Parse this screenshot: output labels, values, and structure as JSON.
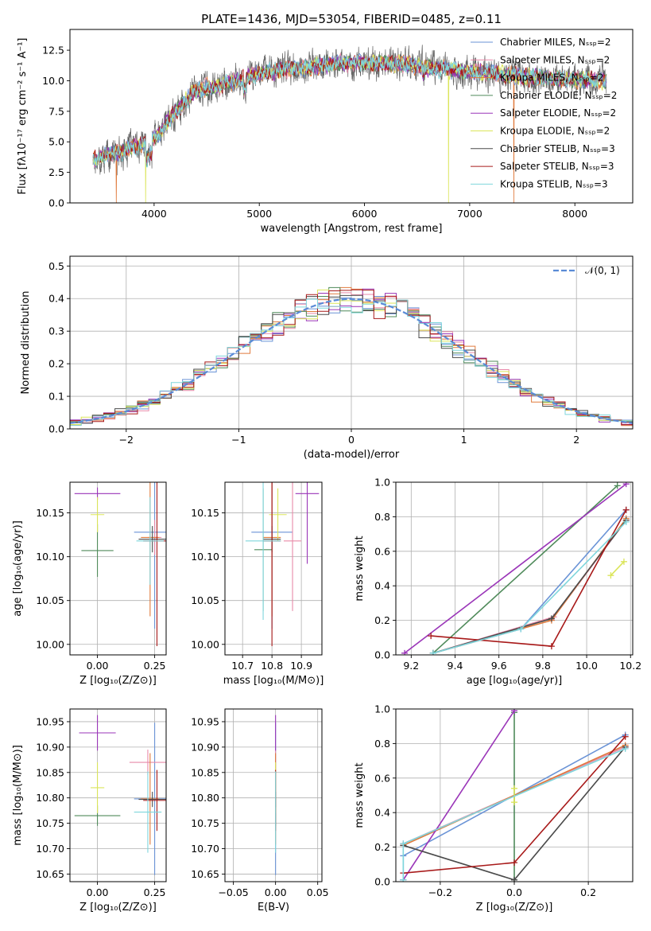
{
  "colors": {
    "Chabrier MILES": "#6a93d6",
    "Salpeter MILES": "#e88aa9",
    "Kroupa MILES": "#e07a3c",
    "Chabrier ELODIE": "#4f8a5a",
    "Salpeter ELODIE": "#9a35b8",
    "Kroupa ELODIE": "#dbe55a",
    "Chabrier STELIB": "#4a4a4a",
    "Salpeter STELIB": "#a81a1a",
    "Kroupa STELIB": "#7fd6dc",
    "normal": "#5a8bd6"
  },
  "chart_data": [
    {
      "id": "spectrum",
      "type": "line",
      "title": "PLATE=1436, MJD=53054, FIBERID=0485, z=0.11",
      "xlabel": "wavelength [Angstrom, rest frame]",
      "ylabel": "Flux [fλ10⁻¹⁷ erg cm⁻² s⁻¹ A⁻¹]",
      "xlim": [
        3200,
        8550
      ],
      "ylim": [
        0,
        14.2
      ],
      "xticks": [
        4000,
        5000,
        6000,
        7000,
        8000
      ],
      "yticks": [
        0.0,
        2.5,
        5.0,
        7.5,
        10.0,
        12.5
      ],
      "grid": false,
      "legend_position": "top-right",
      "legend": [
        "Chabrier MILES, Nₛₛₚ=2",
        "Salpeter MILES, Nₛₛₚ=2",
        "Kroupa MILES, Nₛₛₚ=2",
        "Chabrier ELODIE, Nₛₛₚ=2",
        "Salpeter ELODIE, Nₛₛₚ=2",
        "Kroupa ELODIE, Nₛₛₚ=2",
        "Chabrier STELIB, Nₛₛₚ=3",
        "Salpeter STELIB, Nₛₛₚ=3",
        "Kroupa STELIB, Nₛₛₚ=3"
      ],
      "legend_series": [
        "Chabrier MILES",
        "Salpeter MILES",
        "Kroupa MILES",
        "Chabrier ELODIE",
        "Salpeter ELODIE",
        "Kroupa ELODIE",
        "Chabrier STELIB",
        "Salpeter STELIB",
        "Kroupa STELIB"
      ],
      "wavelength_range": [
        3420,
        8300
      ],
      "continuum_x": [
        3420,
        3600,
        3700,
        3800,
        3900,
        4000,
        4100,
        4200,
        4300,
        4400,
        4600,
        4800,
        5000,
        5200,
        5500,
        5800,
        6000,
        6300,
        6600,
        6900,
        7200,
        7500,
        7800,
        8000,
        8300
      ],
      "continuum_y": [
        3.6,
        4.0,
        4.2,
        4.6,
        4.8,
        5.3,
        6.3,
        7.4,
        8.3,
        9.2,
        9.6,
        10.0,
        10.6,
        10.9,
        11.2,
        11.4,
        11.5,
        11.4,
        11.1,
        10.8,
        10.6,
        10.4,
        10.2,
        10.1,
        10.0
      ],
      "drops": [
        {
          "x": 3640,
          "series": "Kroupa MILES"
        },
        {
          "x": 3920,
          "series": "Kroupa ELODIE"
        },
        {
          "x": 6800,
          "series": "Kroupa ELODIE"
        },
        {
          "x": 7420,
          "series": "Kroupa MILES"
        }
      ]
    },
    {
      "id": "residuals",
      "type": "histogram",
      "xlabel": "(data-model)/error",
      "ylabel": "Normed distribution",
      "xlim": [
        -2.5,
        2.5
      ],
      "ylim": [
        0,
        0.53
      ],
      "xticks": [
        -2,
        -1,
        0,
        1,
        2
      ],
      "yticks": [
        0.0,
        0.1,
        0.2,
        0.3,
        0.4,
        0.5
      ],
      "grid": true,
      "bin_width": 0.1,
      "legend_position": "top-right",
      "legend": [
        "𝒩(0, 1)"
      ],
      "normal_curve": {
        "mean": 0,
        "sigma": 1
      }
    },
    {
      "id": "age_vs_Z",
      "type": "errorbar",
      "xlabel": "Z [log₁₀(Z/Z⊙)]",
      "ylabel": "age  [log₁₀(age/yr)]",
      "xlim": [
        -0.12,
        0.3
      ],
      "ylim": [
        9.988,
        10.185
      ],
      "xticks": [
        0.0,
        0.25
      ],
      "yticks": [
        10.0,
        10.05,
        10.1,
        10.15
      ],
      "grid": true,
      "points": [
        {
          "series": "Chabrier MILES",
          "x": 0.25,
          "y": 10.128,
          "xerr": 0.09,
          "yerr": 0.11
        },
        {
          "series": "Salpeter MILES",
          "x": 0.25,
          "y": 10.122,
          "xerr": 0.03,
          "yerr": 0.02
        },
        {
          "series": "Kroupa MILES",
          "x": 0.23,
          "y": 10.122,
          "xerr": 0.04,
          "yerr": 0.09
        },
        {
          "series": "Chabrier ELODIE",
          "x": 0.0,
          "y": 10.107,
          "xerr": 0.07,
          "yerr": 0.03
        },
        {
          "series": "Salpeter ELODIE",
          "x": 0.0,
          "y": 10.172,
          "xerr": 0.1,
          "yerr": 0.007
        },
        {
          "series": "Kroupa ELODIE",
          "x": 0.0,
          "y": 10.148,
          "xerr": 0.03,
          "yerr": 0.02
        },
        {
          "series": "Chabrier STELIB",
          "x": 0.24,
          "y": 10.12,
          "xerr": 0.06,
          "yerr": 0.015
        },
        {
          "series": "Salpeter STELIB",
          "x": 0.26,
          "y": 10.118,
          "xerr": 0.06,
          "yerr": 0.12
        },
        {
          "series": "Kroupa STELIB",
          "x": 0.23,
          "y": 10.118,
          "xerr": 0.06,
          "yerr": 0.05
        }
      ]
    },
    {
      "id": "age_vs_mass",
      "type": "errorbar",
      "xlabel": "mass [log₁₀(M/M⊙)]",
      "ylabel": "",
      "xlim": [
        10.64,
        10.97
      ],
      "ylim": [
        9.988,
        10.185
      ],
      "xticks": [
        10.7,
        10.8,
        10.9
      ],
      "yticks": [
        10.0,
        10.05,
        10.1,
        10.15
      ],
      "grid": true,
      "points": [
        {
          "series": "Chabrier MILES",
          "x": 10.8,
          "y": 10.128,
          "xerr": 0.07,
          "yerr": 0.11
        },
        {
          "series": "Salpeter MILES",
          "x": 10.87,
          "y": 10.118,
          "xerr": 0.03,
          "yerr": 0.08
        },
        {
          "series": "Kroupa MILES",
          "x": 10.8,
          "y": 10.122,
          "xerr": 0.03,
          "yerr": 0.09
        },
        {
          "series": "Chabrier ELODIE",
          "x": 10.77,
          "y": 10.108,
          "xerr": 0.03,
          "yerr": 0.07
        },
        {
          "series": "Salpeter ELODIE",
          "x": 10.92,
          "y": 10.172,
          "xerr": 0.04,
          "yerr": 0.08
        },
        {
          "series": "Kroupa ELODIE",
          "x": 10.82,
          "y": 10.148,
          "xerr": 0.03,
          "yerr": 0.03
        },
        {
          "series": "Chabrier STELIB",
          "x": 10.8,
          "y": 10.12,
          "xerr": 0.03,
          "yerr": 0.015
        },
        {
          "series": "Salpeter STELIB",
          "x": 10.8,
          "y": 10.118,
          "xerr": 0.03,
          "yerr": 0.12
        },
        {
          "series": "Kroupa STELIB",
          "x": 10.77,
          "y": 10.118,
          "xerr": 0.06,
          "yerr": 0.09
        }
      ]
    },
    {
      "id": "mass_weight_vs_age",
      "type": "line",
      "xlabel": "age  [log₁₀(age/yr)]",
      "ylabel": "mass weight",
      "xlim": [
        9.13,
        10.21
      ],
      "ylim": [
        0,
        1
      ],
      "xticks": [
        9.2,
        9.4,
        9.6,
        9.8,
        10.0,
        10.2
      ],
      "yticks": [
        0.0,
        0.2,
        0.4,
        0.6,
        0.8,
        1.0
      ],
      "grid": true,
      "series": [
        {
          "name": "Chabrier MILES",
          "x": [
            9.3,
            9.7,
            10.18
          ],
          "y": [
            0.01,
            0.15,
            0.84
          ]
        },
        {
          "name": "Salpeter MILES",
          "x": [
            9.3,
            9.85,
            10.18
          ],
          "y": [
            0.01,
            0.22,
            0.78
          ]
        },
        {
          "name": "Kroupa MILES",
          "x": [
            9.3,
            9.84,
            10.18
          ],
          "y": [
            0.01,
            0.2,
            0.79
          ]
        },
        {
          "name": "Chabrier ELODIE",
          "x": [
            9.3,
            10.14
          ],
          "y": [
            0.01,
            0.98
          ]
        },
        {
          "name": "Salpeter ELODIE",
          "x": [
            9.17,
            10.18
          ],
          "y": [
            0.01,
            0.99
          ]
        },
        {
          "name": "Kroupa ELODIE",
          "x": [
            10.11,
            10.17
          ],
          "y": [
            0.46,
            0.54
          ]
        },
        {
          "name": "Chabrier STELIB",
          "x": [
            9.3,
            9.84,
            10.18
          ],
          "y": [
            0.01,
            0.21,
            0.78
          ]
        },
        {
          "name": "Salpeter STELIB",
          "x": [
            9.29,
            9.84,
            10.18
          ],
          "y": [
            0.11,
            0.05,
            0.84
          ]
        },
        {
          "name": "Kroupa STELIB",
          "x": [
            9.3,
            9.7,
            10.18
          ],
          "y": [
            0.01,
            0.15,
            0.77
          ]
        }
      ]
    },
    {
      "id": "mass_vs_Z",
      "type": "errorbar",
      "xlabel": "Z [log₁₀(Z/Z⊙)]",
      "ylabel": "mass [log₁₀(M/M⊙)]",
      "xlim": [
        -0.12,
        0.3
      ],
      "ylim": [
        10.635,
        10.975
      ],
      "xticks": [
        0.0,
        0.25
      ],
      "yticks": [
        10.65,
        10.7,
        10.75,
        10.8,
        10.85,
        10.9,
        10.95
      ],
      "grid": true,
      "points": [
        {
          "series": "Chabrier MILES",
          "x": 0.25,
          "y": 10.798,
          "xerr": 0.09,
          "yerr": 0.15
        },
        {
          "series": "Salpeter MILES",
          "x": 0.22,
          "y": 10.87,
          "xerr": 0.08,
          "yerr": 0.025
        },
        {
          "series": "Kroupa MILES",
          "x": 0.23,
          "y": 10.798,
          "xerr": 0.04,
          "yerr": 0.09
        },
        {
          "series": "Chabrier ELODIE",
          "x": 0.0,
          "y": 10.765,
          "xerr": 0.1,
          "yerr": 0.02
        },
        {
          "series": "Salpeter ELODIE",
          "x": 0.0,
          "y": 10.928,
          "xerr": 0.08,
          "yerr": 0.035
        },
        {
          "series": "Kroupa ELODIE",
          "x": 0.0,
          "y": 10.82,
          "xerr": 0.03,
          "yerr": 0.05
        },
        {
          "series": "Chabrier STELIB",
          "x": 0.24,
          "y": 10.797,
          "xerr": 0.06,
          "yerr": 0.015
        },
        {
          "series": "Salpeter STELIB",
          "x": 0.26,
          "y": 10.795,
          "xerr": 0.06,
          "yerr": 0.06
        },
        {
          "series": "Kroupa STELIB",
          "x": 0.22,
          "y": 10.772,
          "xerr": 0.06,
          "yerr": 0.08
        }
      ]
    },
    {
      "id": "mass_vs_EBV",
      "type": "errorbar",
      "xlabel": "E(B-V)",
      "ylabel": "",
      "xlim": [
        -0.06,
        0.055
      ],
      "ylim": [
        10.635,
        10.975
      ],
      "xticks": [
        -0.05,
        0.0,
        0.05
      ],
      "yticks": [
        10.65,
        10.7,
        10.75,
        10.8,
        10.85,
        10.9,
        10.95
      ],
      "grid": true,
      "points": [
        {
          "series": "Chabrier MILES",
          "x": 0.0,
          "y": 10.798,
          "xerr": 0.0,
          "yerr": 0.15
        },
        {
          "series": "Salpeter MILES",
          "x": 0.0,
          "y": 10.87,
          "xerr": 0.0,
          "yerr": 0.025
        },
        {
          "series": "Kroupa MILES",
          "x": 0.0,
          "y": 10.798,
          "xerr": 0.0,
          "yerr": 0.09
        },
        {
          "series": "Chabrier ELODIE",
          "x": 0.0,
          "y": 10.765,
          "xerr": 0.0,
          "yerr": 0.02
        },
        {
          "series": "Salpeter ELODIE",
          "x": 0.0,
          "y": 10.928,
          "xerr": 0.0,
          "yerr": 0.035
        },
        {
          "series": "Kroupa ELODIE",
          "x": 0.0,
          "y": 10.82,
          "xerr": 0.0,
          "yerr": 0.05
        },
        {
          "series": "Chabrier STELIB",
          "x": 0.0,
          "y": 10.797,
          "xerr": 0.0,
          "yerr": 0.015
        },
        {
          "series": "Salpeter STELIB",
          "x": 0.0,
          "y": 10.795,
          "xerr": 0.0,
          "yerr": 0.06
        },
        {
          "series": "Kroupa STELIB",
          "x": 0.0,
          "y": 10.772,
          "xerr": 0.0,
          "yerr": 0.08
        }
      ]
    },
    {
      "id": "mass_weight_vs_Z",
      "type": "line",
      "xlabel": "Z [log₁₀(Z/Z⊙)]",
      "ylabel": "mass weight",
      "xlim": [
        -0.32,
        0.32
      ],
      "ylim": [
        0,
        1
      ],
      "xticks": [
        -0.2,
        0.0,
        0.2
      ],
      "yticks": [
        0.0,
        0.2,
        0.4,
        0.6,
        0.8,
        1.0
      ],
      "grid": true,
      "series": [
        {
          "name": "Chabrier MILES",
          "x": [
            -0.3,
            -0.3,
            0.3
          ],
          "y": [
            0.01,
            0.15,
            0.85
          ]
        },
        {
          "name": "Salpeter MILES",
          "x": [
            -0.3,
            0.3
          ],
          "y": [
            0.22,
            0.78
          ]
        },
        {
          "name": "Kroupa MILES",
          "x": [
            -0.3,
            0.3
          ],
          "y": [
            0.21,
            0.79
          ]
        },
        {
          "name": "Chabrier ELODIE",
          "x": [
            0.0,
            0.0
          ],
          "y": [
            0.01,
            0.98
          ]
        },
        {
          "name": "Salpeter ELODIE",
          "x": [
            -0.3,
            0.0
          ],
          "y": [
            0.01,
            0.99
          ]
        },
        {
          "name": "Kroupa ELODIE",
          "x": [
            0.0,
            0.0
          ],
          "y": [
            0.46,
            0.54
          ]
        },
        {
          "name": "Chabrier STELIB",
          "x": [
            -0.3,
            0.0,
            0.3
          ],
          "y": [
            0.21,
            0.01,
            0.78
          ]
        },
        {
          "name": "Salpeter STELIB",
          "x": [
            -0.3,
            0.0,
            0.3
          ],
          "y": [
            0.05,
            0.11,
            0.84
          ]
        },
        {
          "name": "Kroupa STELIB",
          "x": [
            -0.3,
            -0.3,
            0.3
          ],
          "y": [
            0.01,
            0.22,
            0.77
          ]
        }
      ]
    }
  ]
}
